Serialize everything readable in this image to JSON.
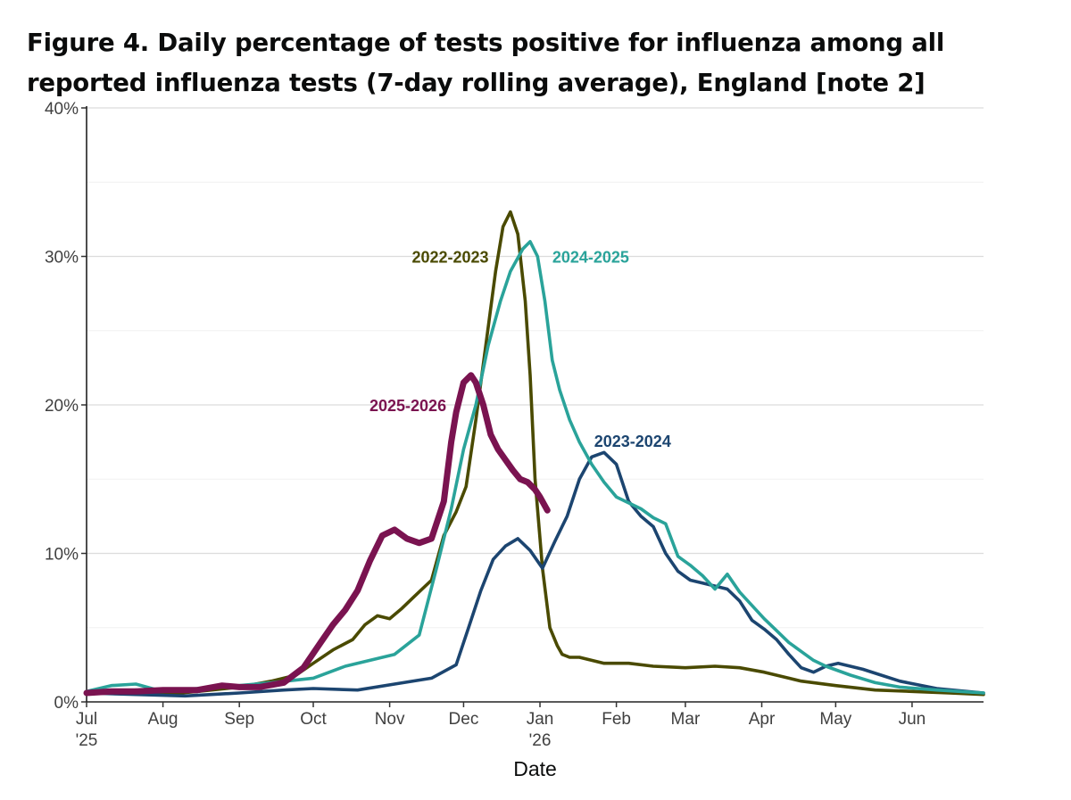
{
  "figure": {
    "title": "Figure 4. Daily percentage of tests positive for influenza among all reported influenza tests (7-day rolling average), England [note 2]"
  },
  "chart_data": {
    "type": "line",
    "title": "Figure 4. Daily percentage of tests positive for influenza among all reported influenza tests (7-day rolling average), England [note 2]",
    "xlabel": "Date",
    "ylabel": "",
    "x_unit": "days since 1 Jul",
    "xlim": [
      0,
      364
    ],
    "ylim": [
      0,
      40
    ],
    "grid": true,
    "legend": "direct labels on lines",
    "y_ticks": [
      {
        "value": 0,
        "label": "0%"
      },
      {
        "value": 10,
        "label": "10%"
      },
      {
        "value": 20,
        "label": "20%"
      },
      {
        "value": 30,
        "label": "30%"
      },
      {
        "value": 40,
        "label": "40%"
      }
    ],
    "x_ticks": [
      {
        "value": 0,
        "label": "Jul",
        "sublabel": "'25"
      },
      {
        "value": 31,
        "label": "Aug",
        "sublabel": ""
      },
      {
        "value": 62,
        "label": "Sep",
        "sublabel": ""
      },
      {
        "value": 92,
        "label": "Oct",
        "sublabel": ""
      },
      {
        "value": 123,
        "label": "Nov",
        "sublabel": ""
      },
      {
        "value": 153,
        "label": "Dec",
        "sublabel": ""
      },
      {
        "value": 184,
        "label": "Jan",
        "sublabel": "'26"
      },
      {
        "value": 215,
        "label": "Feb",
        "sublabel": ""
      },
      {
        "value": 243,
        "label": "Mar",
        "sublabel": ""
      },
      {
        "value": 274,
        "label": "Apr",
        "sublabel": ""
      },
      {
        "value": 304,
        "label": "May",
        "sublabel": ""
      },
      {
        "value": 335,
        "label": "Jun",
        "sublabel": ""
      }
    ],
    "series": [
      {
        "name": "2022-2023",
        "color": "#4a4a00",
        "label_at": [
          132,
          30
        ],
        "label_anchor": "start",
        "x": [
          0,
          10,
          20,
          31,
          45,
          62,
          75,
          85,
          92,
          100,
          108,
          113,
          118,
          123,
          128,
          133,
          140,
          145,
          150,
          154,
          158,
          162,
          166,
          169,
          172,
          175,
          178,
          180,
          182,
          185,
          188,
          191,
          193,
          196,
          200,
          210,
          220,
          230,
          243,
          255,
          265,
          275,
          290,
          304,
          320,
          335,
          350,
          364
        ],
        "values": [
          0.7,
          0.6,
          0.8,
          0.5,
          0.7,
          1.0,
          1.4,
          1.8,
          2.6,
          3.5,
          4.2,
          5.2,
          5.8,
          5.6,
          6.3,
          7.1,
          8.2,
          11.2,
          12.8,
          14.5,
          19.0,
          24.0,
          29.0,
          32.0,
          33.0,
          31.5,
          27.0,
          22.0,
          15.0,
          9.0,
          5.0,
          3.8,
          3.2,
          3.0,
          3.0,
          2.6,
          2.6,
          2.4,
          2.3,
          2.4,
          2.3,
          2.0,
          1.4,
          1.1,
          0.8,
          0.7,
          0.6,
          0.5
        ]
      },
      {
        "name": "2023-2024",
        "color": "#1c4570",
        "label_at": [
          206,
          17.6
        ],
        "label_anchor": "start",
        "x": [
          0,
          20,
          40,
          62,
          80,
          92,
          110,
          125,
          140,
          150,
          155,
          160,
          165,
          170,
          175,
          180,
          185,
          190,
          195,
          200,
          205,
          210,
          215,
          220,
          225,
          230,
          235,
          240,
          245,
          250,
          255,
          260,
          265,
          270,
          275,
          280,
          285,
          290,
          295,
          300,
          305,
          315,
          330,
          345,
          364
        ],
        "values": [
          0.6,
          0.5,
          0.4,
          0.6,
          0.8,
          0.9,
          0.8,
          1.2,
          1.6,
          2.5,
          5.0,
          7.5,
          9.6,
          10.5,
          11.0,
          10.2,
          9.0,
          10.8,
          12.5,
          15.0,
          16.5,
          16.8,
          16.0,
          13.5,
          12.5,
          11.8,
          10.0,
          8.8,
          8.2,
          8.0,
          7.8,
          7.6,
          6.8,
          5.5,
          4.9,
          4.2,
          3.2,
          2.3,
          2.0,
          2.4,
          2.6,
          2.2,
          1.4,
          0.9,
          0.6
        ]
      },
      {
        "name": "2024-2025",
        "color": "#2aa39a",
        "label_at": [
          189,
          30
        ],
        "label_anchor": "start",
        "x": [
          0,
          10,
          20,
          31,
          45,
          62,
          75,
          92,
          105,
          115,
          125,
          135,
          142,
          148,
          153,
          158,
          163,
          168,
          172,
          177,
          180,
          183,
          186,
          189,
          192,
          196,
          200,
          205,
          210,
          215,
          220,
          225,
          230,
          235,
          240,
          245,
          250,
          255,
          260,
          265,
          270,
          275,
          280,
          285,
          290,
          295,
          300,
          305,
          310,
          320,
          330,
          345,
          364
        ],
        "values": [
          0.7,
          1.1,
          1.2,
          0.7,
          0.9,
          1.1,
          1.3,
          1.6,
          2.4,
          2.8,
          3.2,
          4.5,
          9.0,
          13.0,
          17.0,
          20.0,
          24.0,
          27.0,
          29.0,
          30.5,
          31.0,
          30.0,
          27.0,
          23.0,
          21.0,
          19.0,
          17.5,
          16.0,
          14.8,
          13.8,
          13.4,
          13.0,
          12.4,
          12.0,
          9.8,
          9.2,
          8.5,
          7.6,
          8.6,
          7.4,
          6.5,
          5.6,
          4.8,
          4.0,
          3.4,
          2.8,
          2.4,
          2.1,
          1.8,
          1.3,
          1.0,
          0.8,
          0.6
        ]
      },
      {
        "name": "2025-2026",
        "color": "#7a1350",
        "thick": true,
        "label_at": [
          146,
          20
        ],
        "label_anchor": "end",
        "x": [
          0,
          10,
          20,
          31,
          45,
          55,
          62,
          70,
          80,
          88,
          95,
          100,
          105,
          110,
          115,
          120,
          125,
          130,
          135,
          140,
          145,
          148,
          150,
          153,
          156,
          158,
          161,
          164,
          167,
          170,
          173,
          176,
          179,
          182,
          184,
          187
        ],
        "values": [
          0.6,
          0.7,
          0.7,
          0.8,
          0.8,
          1.1,
          1.0,
          1.0,
          1.3,
          2.3,
          4.0,
          5.2,
          6.2,
          7.5,
          9.5,
          11.2,
          11.6,
          11.0,
          10.7,
          11.0,
          13.5,
          17.5,
          19.5,
          21.5,
          22.0,
          21.5,
          20.0,
          18.0,
          17.0,
          16.3,
          15.6,
          15.0,
          14.8,
          14.3,
          13.8,
          12.9
        ]
      }
    ]
  }
}
